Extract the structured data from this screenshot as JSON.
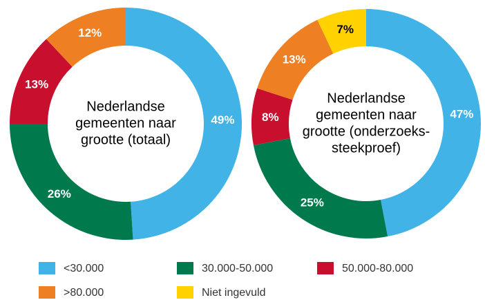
{
  "legend": {
    "names": [
      "<30.000",
      "30.000-50.000",
      "50.000-80.000",
      ">80.000",
      "Niet ingevuld"
    ],
    "colors": [
      "#41b3e6",
      "#007a4d",
      "#c8102e",
      "#ee7f22",
      "#ffd200"
    ]
  },
  "chart_data": [
    {
      "type": "pie",
      "title": [
        "Nederlandse",
        "gemeenten naar",
        "grootte (totaal)"
      ],
      "values": [
        49,
        26,
        13,
        12
      ],
      "value_labels": [
        "49%",
        "26%",
        "13%",
        "12%"
      ],
      "label_colors": [
        "#ffffff",
        "#ffffff",
        "#ffffff",
        "#ffffff"
      ]
    },
    {
      "type": "pie",
      "title": [
        "Nederlandse",
        "gemeenten naar",
        "grootte (onderzoeks-",
        "steekproef)"
      ],
      "values": [
        47,
        25,
        8,
        13,
        7
      ],
      "value_labels": [
        "47%",
        "25%",
        "8%",
        "13%",
        "7%"
      ],
      "label_colors": [
        "#ffffff",
        "#ffffff",
        "#ffffff",
        "#ffffff",
        "#000000"
      ]
    }
  ]
}
